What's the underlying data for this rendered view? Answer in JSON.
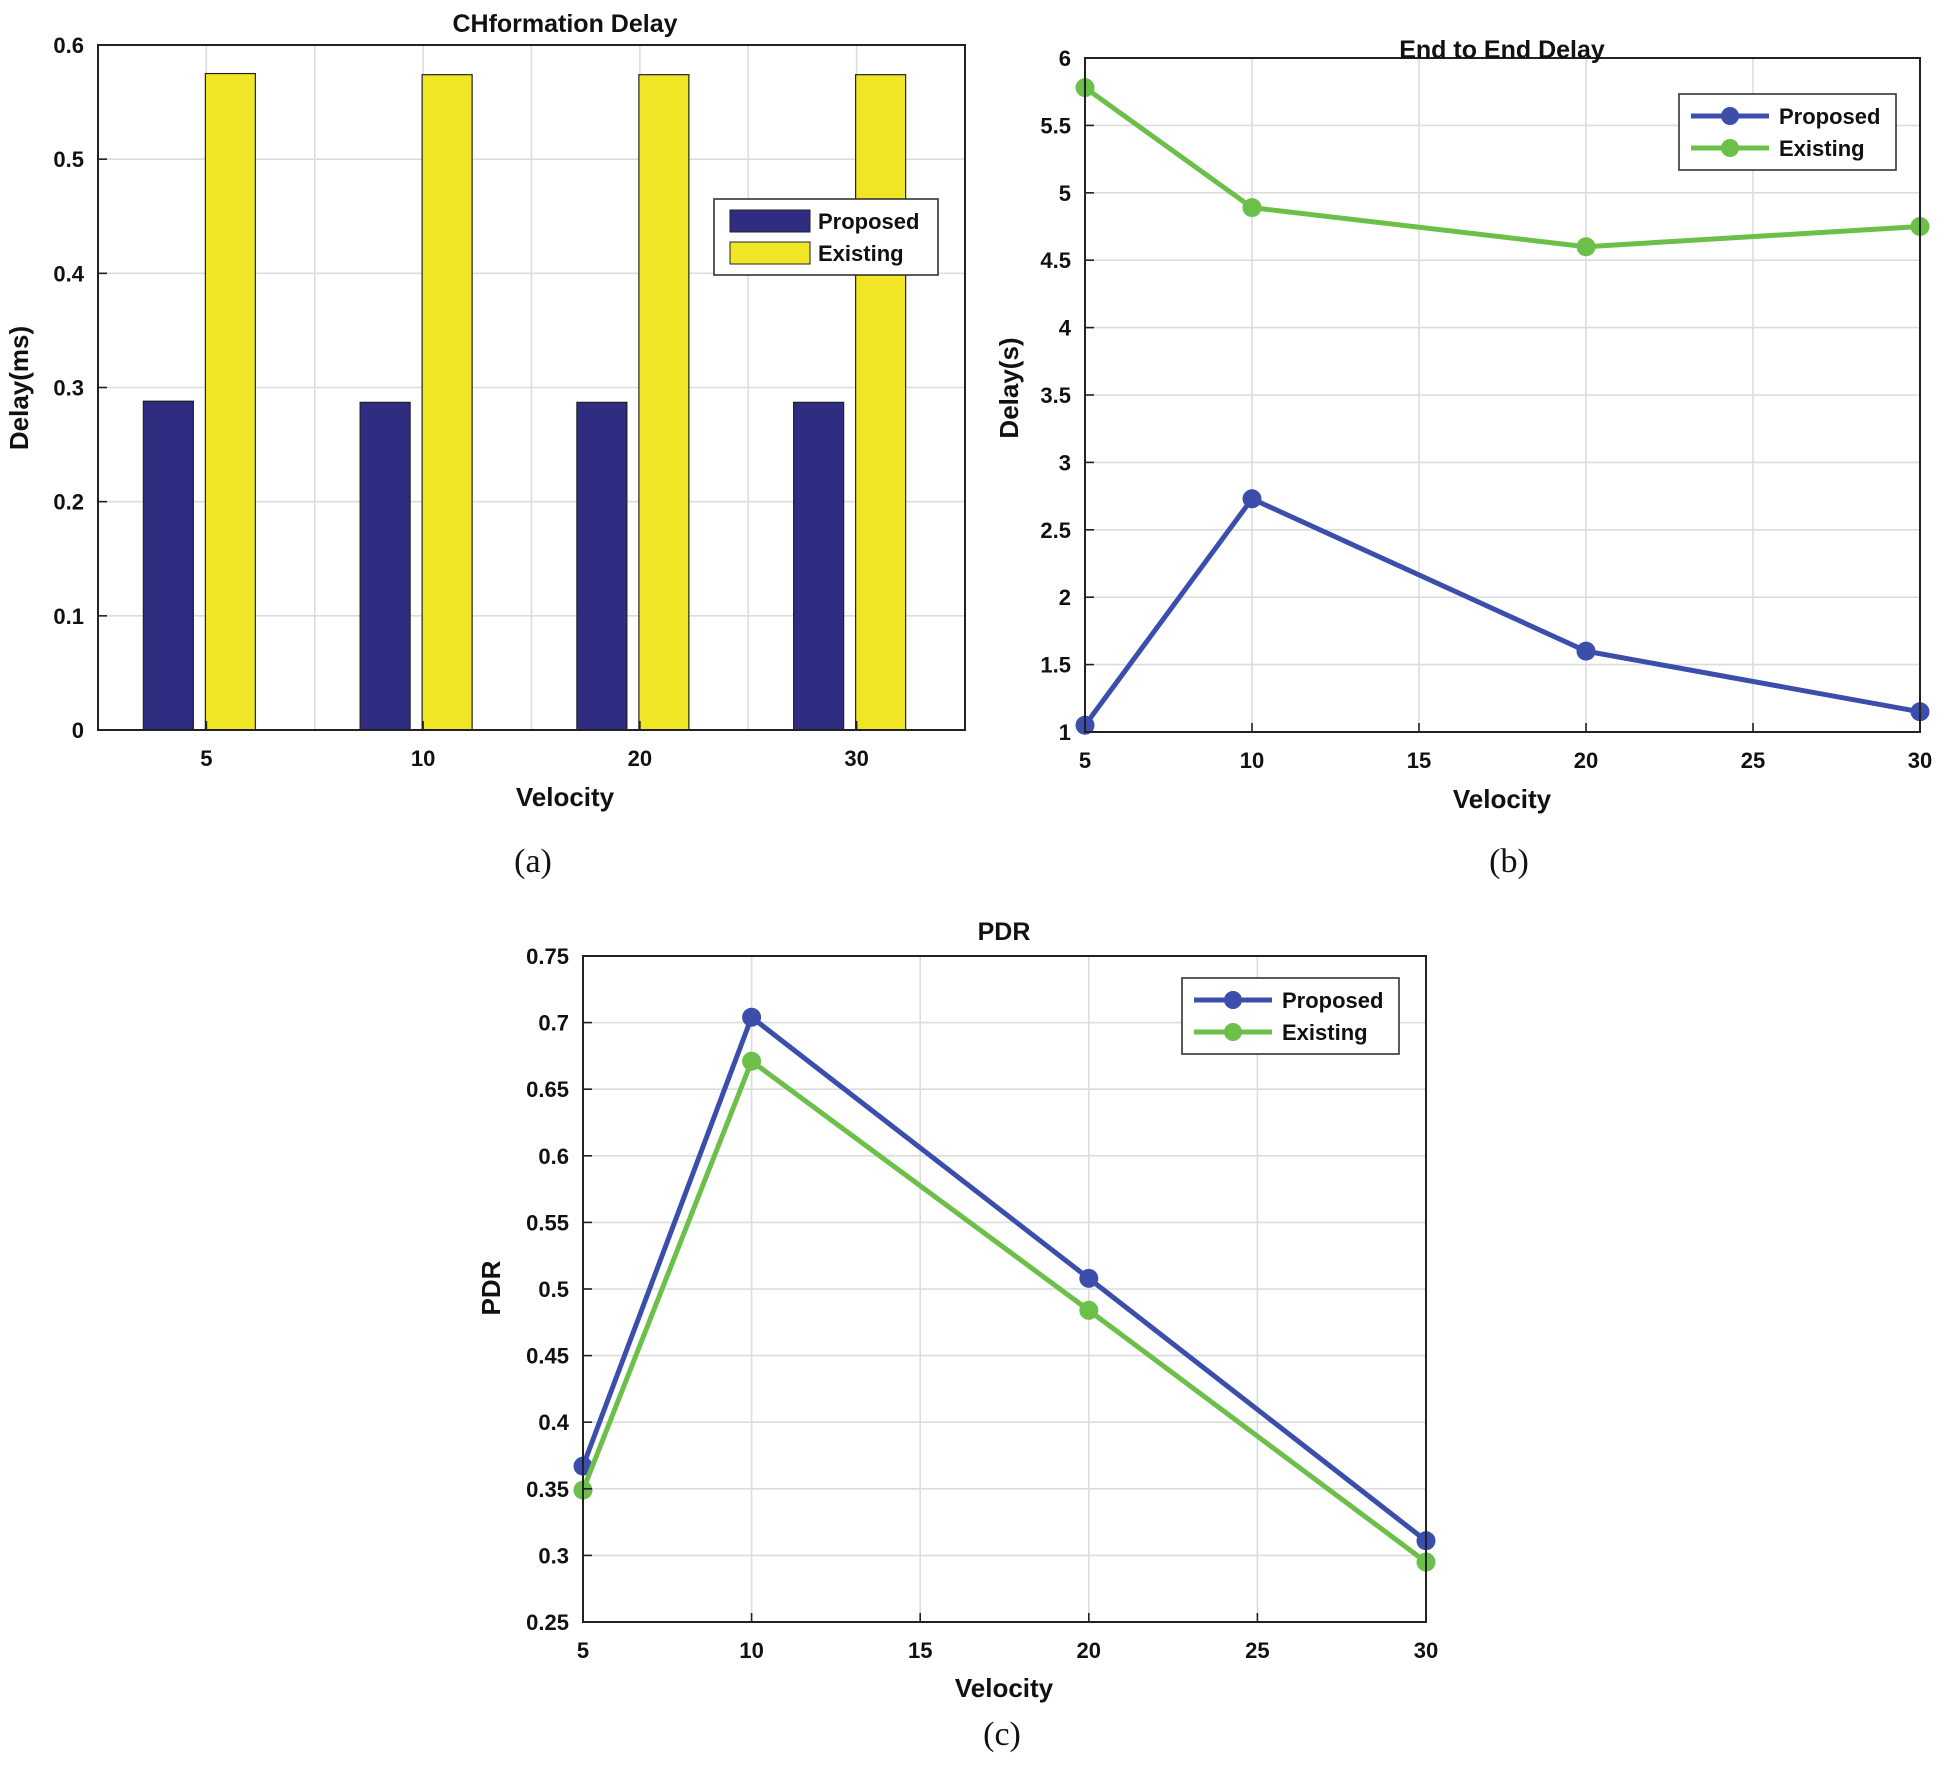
{
  "figure": {
    "captions": {
      "a": "(a)",
      "b": "(b)",
      "c": "(c)"
    }
  },
  "colors": {
    "proposed_bar": "#2f2d82",
    "existing_bar": "#f0e625",
    "proposed_line": "#3b4eac",
    "existing_line": "#6cc04a",
    "grid": "#dcdcdc",
    "axis": "#222222"
  },
  "chart_data": [
    {
      "id": "a",
      "type": "bar",
      "title": "CHformation Delay",
      "xlabel": "Velocity",
      "ylabel": "Delay(ms)",
      "categories": [
        "5",
        "10",
        "20",
        "30"
      ],
      "series": [
        {
          "name": "Proposed",
          "values": [
            0.288,
            0.287,
            0.287,
            0.287
          ]
        },
        {
          "name": "Existing",
          "values": [
            0.575,
            0.574,
            0.574,
            0.574
          ]
        }
      ],
      "ylim": [
        0,
        0.6
      ],
      "yticks": [
        0,
        0.1,
        0.2,
        0.3,
        0.4,
        0.5,
        0.6
      ],
      "ytick_labels": [
        "0",
        "0.1",
        "0.2",
        "0.3",
        "0.4",
        "0.5",
        "0.6"
      ],
      "grid": true,
      "legend": "upper-right"
    },
    {
      "id": "b",
      "type": "line",
      "title": "End to End Delay",
      "xlabel": "Velocity",
      "ylabel": "Delay(s)",
      "x": [
        5,
        10,
        20,
        30
      ],
      "series": [
        {
          "name": "Proposed",
          "values": [
            1.05,
            2.73,
            1.6,
            1.15
          ]
        },
        {
          "name": "Existing",
          "values": [
            5.78,
            4.89,
            4.6,
            4.75
          ]
        }
      ],
      "xlim": [
        5,
        30
      ],
      "xticks": [
        5,
        10,
        15,
        20,
        25,
        30
      ],
      "xtick_labels": [
        "5",
        "10",
        "15",
        "20",
        "25",
        "30"
      ],
      "ylim": [
        1,
        6
      ],
      "yticks": [
        1,
        1.5,
        2,
        2.5,
        3,
        3.5,
        4,
        4.5,
        5,
        5.5,
        6
      ],
      "ytick_labels": [
        "1",
        "1.5",
        "2",
        "2.5",
        "3",
        "3.5",
        "4",
        "4.5",
        "5",
        "5.5",
        "6"
      ],
      "grid": true,
      "legend": "upper-right"
    },
    {
      "id": "c",
      "type": "line",
      "title": "PDR",
      "xlabel": "Velocity",
      "ylabel": "PDR",
      "x": [
        5,
        10,
        20,
        30
      ],
      "series": [
        {
          "name": "Proposed",
          "values": [
            0.367,
            0.704,
            0.508,
            0.311
          ]
        },
        {
          "name": "Existing",
          "values": [
            0.349,
            0.671,
            0.484,
            0.295
          ]
        }
      ],
      "xlim": [
        5,
        30
      ],
      "xticks": [
        5,
        10,
        15,
        20,
        25,
        30
      ],
      "xtick_labels": [
        "5",
        "10",
        "15",
        "20",
        "25",
        "30"
      ],
      "ylim": [
        0.25,
        0.75
      ],
      "yticks": [
        0.25,
        0.3,
        0.35,
        0.4,
        0.45,
        0.5,
        0.55,
        0.6,
        0.65,
        0.7,
        0.75
      ],
      "ytick_labels": [
        "0.25",
        "0.3",
        "0.35",
        "0.4",
        "0.45",
        "0.5",
        "0.55",
        "0.6",
        "0.65",
        "0.7",
        "0.75"
      ],
      "grid": true,
      "legend": "upper-right"
    }
  ]
}
